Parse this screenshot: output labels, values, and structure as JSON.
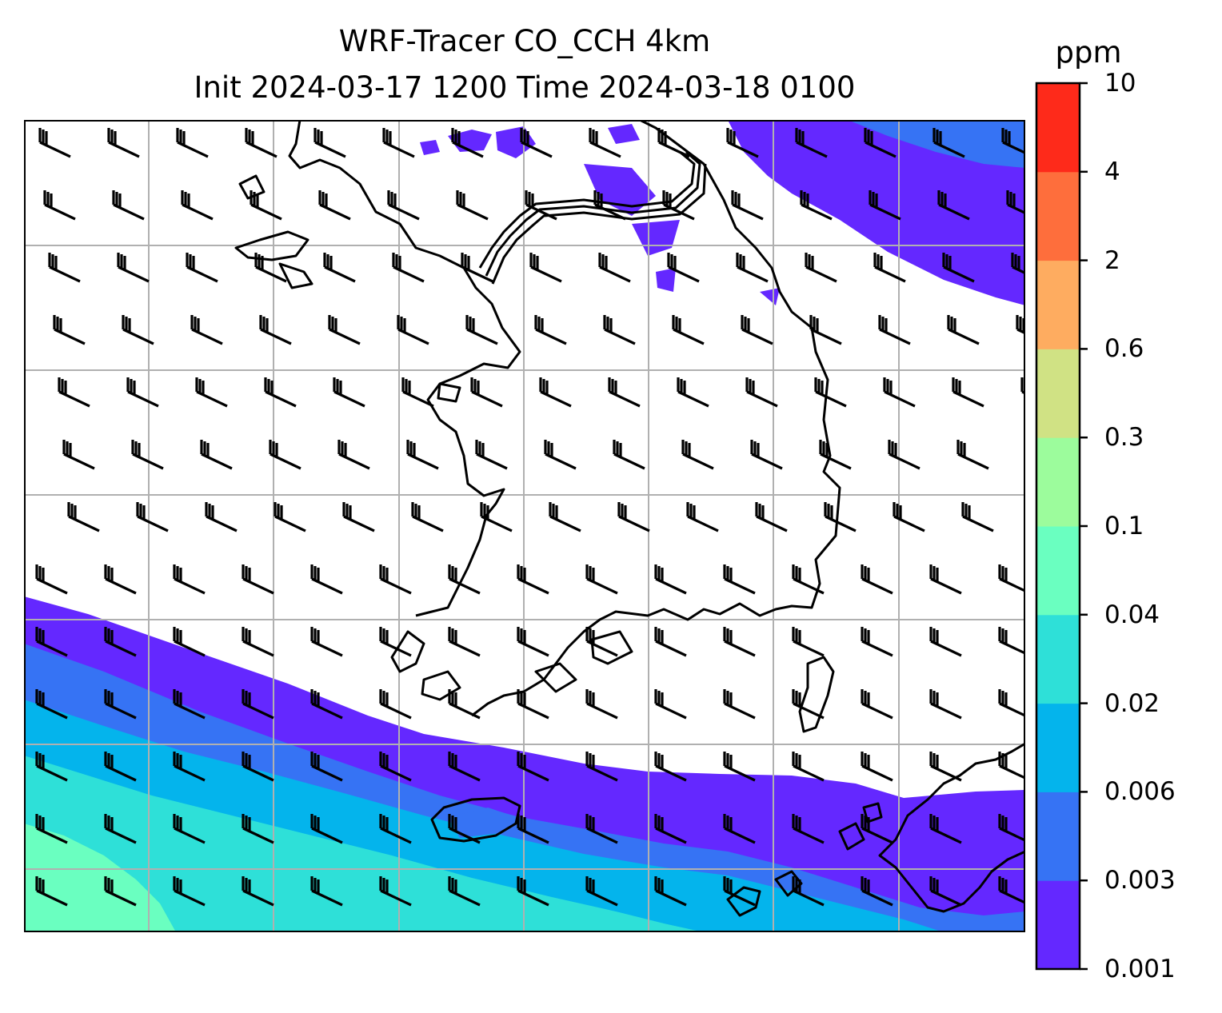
{
  "title": {
    "line1": "WRF-Tracer CO_CCH 4km",
    "line2": "Init 2024-03-17 1200 Time 2024-03-18 0100"
  },
  "colorbar": {
    "units": "ppm",
    "levels": [
      "0.001",
      "0.003",
      "0.006",
      "0.02",
      "0.04",
      "0.1",
      "0.3",
      "0.6",
      "2",
      "4",
      "10"
    ],
    "colors": [
      "#6428ff",
      "#3673f4",
      "#04b4ec",
      "#2ee0d8",
      "#6affc0",
      "#9cfc9c",
      "#d0e284",
      "#feac60",
      "#fe6e3c",
      "#fe2a1a"
    ]
  },
  "map": {
    "background": "#ffffff",
    "gridline_color": "#b0b0b0",
    "coastline_color": "#000000",
    "wind_barb_color": "#000000",
    "tracer_bands": {
      "0.001": "#6428ff",
      "0.003": "#3673f4",
      "0.006": "#04b4ec",
      "0.02": "#2ee0d8",
      "0.04": "#6affc0"
    }
  }
}
